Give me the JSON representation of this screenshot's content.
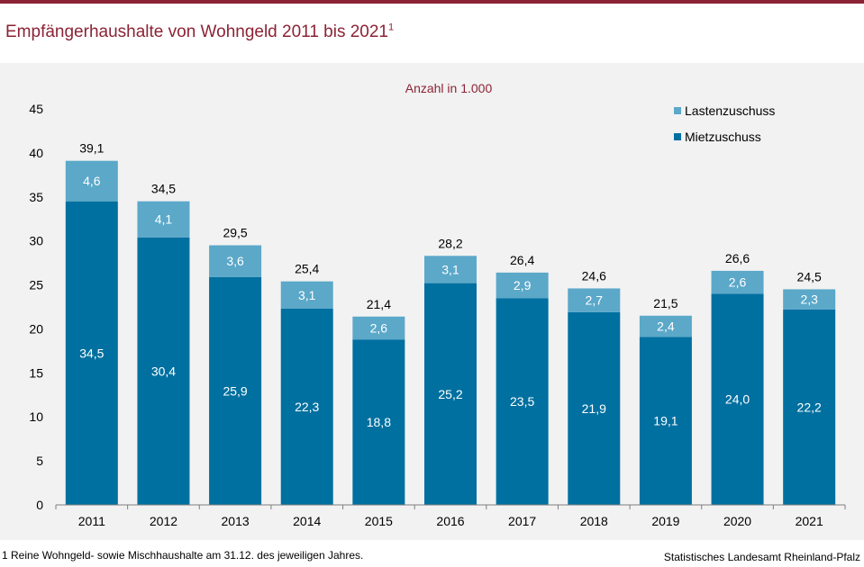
{
  "title": {
    "text": "Empfängerhaushalte von Wohngeld 2011 bis 2021",
    "footnote_marker": "1"
  },
  "footer": {
    "footnote": "1 Reine Wohngeld- sowie Mischhaushalte am 31.12. des jeweiligen Jahres.",
    "source": "Statistisches Landesamt Rheinland-Pfalz"
  },
  "colors": {
    "brand": "#8b2335",
    "mietzuschuss": "#0070a0",
    "lastenzuschuss": "#5ba8c9",
    "panel": "#f2f2f2"
  },
  "chart_data": {
    "type": "bar",
    "stacked": true,
    "subtitle": "Anzahl in 1.000",
    "categories": [
      "2011",
      "2012",
      "2013",
      "2014",
      "2015",
      "2016",
      "2017",
      "2018",
      "2019",
      "2020",
      "2021"
    ],
    "series": [
      {
        "name": "Mietzuschuss",
        "values": [
          34.5,
          30.4,
          25.9,
          22.3,
          18.8,
          25.2,
          23.5,
          21.9,
          19.1,
          24.0,
          22.2
        ],
        "labels": [
          "34,5",
          "30,4",
          "25,9",
          "22,3",
          "18,8",
          "25,2",
          "23,5",
          "21,9",
          "19,1",
          "24,0",
          "22,2"
        ]
      },
      {
        "name": "Lastenzuschuss",
        "values": [
          4.6,
          4.1,
          3.6,
          3.1,
          2.6,
          3.1,
          2.9,
          2.7,
          2.4,
          2.6,
          2.3
        ],
        "labels": [
          "4,6",
          "4,1",
          "3,6",
          "3,1",
          "2,6",
          "3,1",
          "2,9",
          "2,7",
          "2,4",
          "2,6",
          "2,3"
        ]
      }
    ],
    "totals": [
      39.1,
      34.5,
      29.5,
      25.4,
      21.4,
      28.2,
      26.4,
      24.6,
      21.5,
      26.6,
      24.5
    ],
    "total_labels": [
      "39,1",
      "34,5",
      "29,5",
      "25,4",
      "21,4",
      "28,2",
      "26,4",
      "24,6",
      "21,5",
      "26,6",
      "24,5"
    ],
    "ylim": [
      0,
      45
    ],
    "yticks": [
      0,
      5,
      10,
      15,
      20,
      25,
      30,
      35,
      40,
      45
    ],
    "legend": [
      "Lastenzuschuss",
      "Mietzuschuss"
    ],
    "legend_position": "top-right",
    "grid": false,
    "xlabel": "",
    "ylabel": ""
  }
}
